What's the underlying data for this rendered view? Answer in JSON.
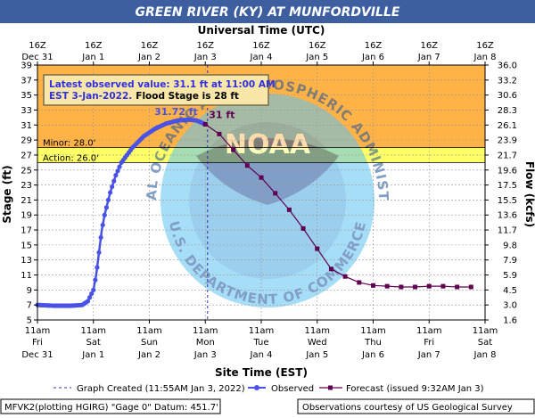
{
  "title": "GREEN RIVER (KY) AT MUNFORDVILLE",
  "top_axis": {
    "label": "Universal Time (UTC)",
    "ticks": [
      {
        "hour": "16Z",
        "date": "Dec 31"
      },
      {
        "hour": "16Z",
        "date": "Jan 1"
      },
      {
        "hour": "16Z",
        "date": "Jan 2"
      },
      {
        "hour": "16Z",
        "date": "Jan 3"
      },
      {
        "hour": "16Z",
        "date": "Jan 4"
      },
      {
        "hour": "16Z",
        "date": "Jan 5"
      },
      {
        "hour": "16Z",
        "date": "Jan 6"
      },
      {
        "hour": "16Z",
        "date": "Jan 7"
      },
      {
        "hour": "16Z",
        "date": "Jan 8"
      }
    ]
  },
  "bottom_axis": {
    "label": "Site Time (EST)",
    "ticks": [
      {
        "time": "11am",
        "day": "Fri",
        "date": "Dec 31"
      },
      {
        "time": "11am",
        "day": "Sat",
        "date": "Jan 1"
      },
      {
        "time": "11am",
        "day": "Sun",
        "date": "Jan 2"
      },
      {
        "time": "11am",
        "day": "Mon",
        "date": "Jan 3"
      },
      {
        "time": "11am",
        "day": "Tue",
        "date": "Jan 4"
      },
      {
        "time": "11am",
        "day": "Wed",
        "date": "Jan 5"
      },
      {
        "time": "11am",
        "day": "Thu",
        "date": "Jan 6"
      },
      {
        "time": "11am",
        "day": "Fri",
        "date": "Jan 7"
      },
      {
        "time": "11am",
        "day": "Sat",
        "date": "Jan 8"
      }
    ]
  },
  "info_box": {
    "line1": "Latest observed value: 31.1 ft at 11:00 AM",
    "line2a": "EST 3-Jan-2022.",
    "line2b": "Flood Stage is 28 ft"
  },
  "legend": {
    "created": "Graph Created (11:55AM Jan 3, 2022)",
    "observed": "Observed",
    "forecast": "Forecast (issued 9:32AM Jan 3)"
  },
  "footer": {
    "left": "MFVK2(plotting HGIRG) \"Gage 0\" Datum: 451.7'",
    "right": "Observations courtesy of US Geological Survey"
  },
  "watermark": {
    "top_text": "NATIONAL OCEANIC AND ATMOSPHERIC ADMINISTRATION",
    "bottom_text": "U.S. DEPARTMENT OF COMMERCE",
    "center_text": "NOAA"
  },
  "colors": {
    "title_bar": "#3d5fa0",
    "above_flood": "#ffb347",
    "minor_band": "#ffff66",
    "normal": "#ffffff",
    "observed": "#4a52e6",
    "forecast": "#600050",
    "grid": "#999999"
  },
  "chart_data": {
    "type": "line",
    "x_unit": "days since Dec 31 11am EST",
    "ylabel": "Stage (ft)",
    "y2label": "Flow (kcfs)",
    "ylim": [
      5,
      39
    ],
    "yticks": [
      5,
      7,
      9,
      11,
      13,
      15,
      17,
      19,
      21,
      23,
      25,
      27,
      29,
      31,
      33,
      35,
      37,
      39
    ],
    "flow_ticks": [
      "1.6",
      "3.0",
      "4.5",
      "5.9",
      "7.9",
      "9.8",
      "11.7",
      "13.6",
      "15.5",
      "17.5",
      "19.6",
      "21.7",
      "23.9",
      "26.1",
      "28.3",
      "30.6",
      "33.2",
      "36.0"
    ],
    "xlim": [
      0,
      8
    ],
    "thresholds": [
      {
        "label": "Minor: 28.0'",
        "value": 28.0
      },
      {
        "label": "Action: 26.0'",
        "value": 26.0
      }
    ],
    "graph_created_x": 3.04,
    "series": [
      {
        "name": "Observed",
        "points": [
          [
            0,
            7.0
          ],
          [
            0.3,
            6.9
          ],
          [
            0.6,
            6.9
          ],
          [
            0.8,
            7.0
          ],
          [
            0.9,
            7.5
          ],
          [
            1.0,
            9.0
          ],
          [
            1.05,
            11.0
          ],
          [
            1.1,
            14.0
          ],
          [
            1.15,
            17.0
          ],
          [
            1.2,
            19.0
          ],
          [
            1.3,
            22.0
          ],
          [
            1.4,
            24.3
          ],
          [
            1.5,
            26.0
          ],
          [
            1.7,
            28.0
          ],
          [
            1.9,
            29.5
          ],
          [
            2.1,
            30.5
          ],
          [
            2.3,
            31.2
          ],
          [
            2.5,
            31.6
          ],
          [
            2.7,
            31.72
          ],
          [
            2.85,
            31.6
          ],
          [
            3.0,
            31.1
          ]
        ],
        "peak_label": "31.72 ft",
        "peak_x": 2.7
      },
      {
        "name": "Forecast",
        "points": [
          [
            3.0,
            31.1
          ],
          [
            3.25,
            29.8
          ],
          [
            3.5,
            27.7
          ],
          [
            3.75,
            25.6
          ],
          [
            4.0,
            24.0
          ],
          [
            4.25,
            21.9
          ],
          [
            4.5,
            19.7
          ],
          [
            4.75,
            17.2
          ],
          [
            5.0,
            14.5
          ],
          [
            5.25,
            11.8
          ],
          [
            5.5,
            10.8
          ],
          [
            5.75,
            10.0
          ],
          [
            6.0,
            9.6
          ],
          [
            6.25,
            9.5
          ],
          [
            6.5,
            9.4
          ],
          [
            6.75,
            9.4
          ],
          [
            7.0,
            9.5
          ],
          [
            7.25,
            9.5
          ],
          [
            7.5,
            9.4
          ],
          [
            7.75,
            9.4
          ]
        ],
        "start_label": "31 ft"
      }
    ]
  }
}
